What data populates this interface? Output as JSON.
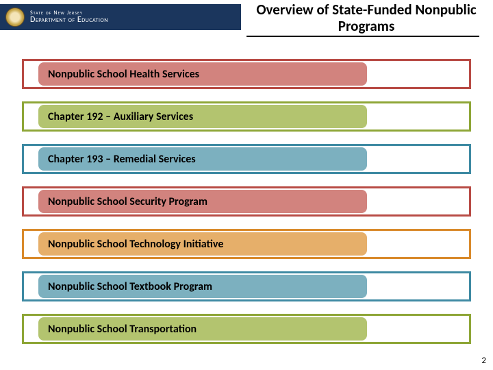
{
  "header": {
    "state_line": "State of New Jersey",
    "dept_line": "Department of Education",
    "title": "Overview of State-Funded Nonpublic Programs",
    "bar_color": "#1b365d"
  },
  "programs": [
    {
      "label": "Nonpublic School Health Services",
      "border": "#b84b45",
      "fill": "#d2837e"
    },
    {
      "label": "Chapter 192 – Auxiliary Services",
      "border": "#8ea637",
      "fill": "#b3c46f"
    },
    {
      "label": "Chapter 193 – Remedial Services",
      "border": "#3e8aa3",
      "fill": "#7cb0bf"
    },
    {
      "label": "Nonpublic School Security Program",
      "border": "#b84b45",
      "fill": "#d2837e"
    },
    {
      "label": "Nonpublic School Technology Initiative",
      "border": "#d98a2b",
      "fill": "#e6af6a"
    },
    {
      "label": "Nonpublic School Textbook Program",
      "border": "#3e8aa3",
      "fill": "#7cb0bf"
    },
    {
      "label": "Nonpublic School Transportation",
      "border": "#8ea637",
      "fill": "#b3c46f"
    }
  ],
  "page_number": "2"
}
